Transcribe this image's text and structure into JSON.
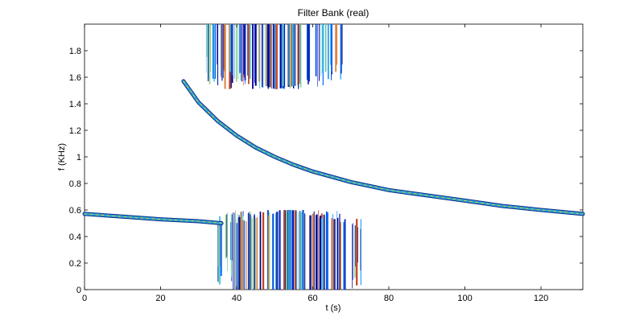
{
  "chart_data": {
    "type": "line",
    "title": "Filter Bank (real)",
    "xlabel": "t (s)",
    "ylabel": "f (KHz)",
    "xlim": [
      0,
      131
    ],
    "ylim": [
      0,
      2.0
    ],
    "xticks": [
      0,
      20,
      40,
      60,
      80,
      100,
      120
    ],
    "yticks": [
      0,
      0.2,
      0.4,
      0.6,
      0.8,
      1,
      1.2,
      1.4,
      1.6,
      1.8
    ],
    "ytick_labels": [
      "0",
      "0.2",
      "0.4",
      "0.6",
      "0.8",
      "1",
      "1.2",
      "1.4",
      "1.6",
      "1.8"
    ],
    "grid": false,
    "series": [
      {
        "x": [
          26,
          30,
          35,
          40,
          45,
          50,
          55,
          60,
          70,
          80,
          90,
          100,
          110,
          120,
          131
        ],
        "y": [
          1.57,
          1.41,
          1.27,
          1.16,
          1.07,
          1.0,
          0.94,
          0.89,
          0.81,
          0.75,
          0.71,
          0.67,
          0.63,
          0.6,
          0.57
        ]
      },
      {
        "x": [
          0,
          10,
          20,
          30,
          36
        ],
        "y": [
          0.57,
          0.55,
          0.53,
          0.515,
          0.5
        ]
      }
    ],
    "bursts": [
      {
        "x_range": [
          32,
          69
        ],
        "y_range": [
          1.5,
          2.0
        ]
      },
      {
        "x_range": [
          35,
          73
        ],
        "y_range": [
          0,
          0.6
        ]
      }
    ],
    "colors": {
      "curve_outer": "#0a2a8a",
      "curve_mid": "#2aa6d8",
      "curve_inner": "#f0c020",
      "burst_palette": [
        "#00008f",
        "#0020c0",
        "#0050e0",
        "#1070ff",
        "#30a0ff",
        "#40c0e0",
        "#70d0b0",
        "#a0d090",
        "#e08040",
        "#c04020",
        "#20308a"
      ]
    }
  }
}
